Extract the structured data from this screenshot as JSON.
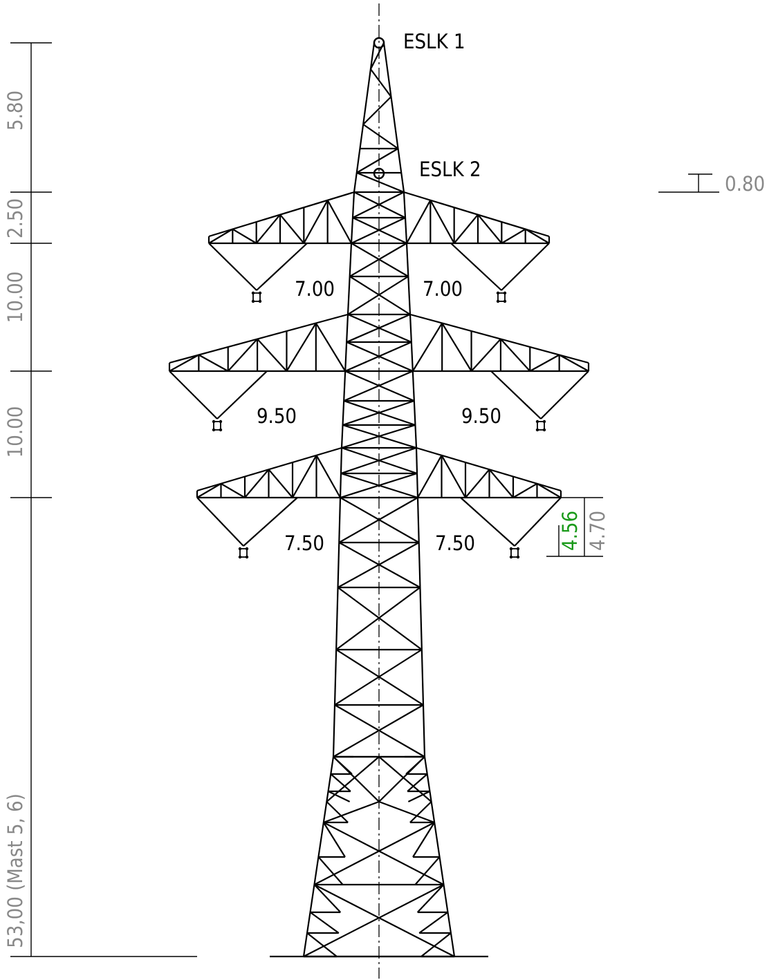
{
  "earth_wires": [
    {
      "label": "ESLK 1"
    },
    {
      "label": "ESLK 2"
    }
  ],
  "offset": "0.80",
  "height_dims": [
    "5.80",
    "2.50",
    "10.00",
    "10.00"
  ],
  "total_height": "53,00 (Mast 5, 6)",
  "arm_widths": [
    {
      "left": "7.00",
      "right": "7.00"
    },
    {
      "left": "9.50",
      "right": "9.50"
    },
    {
      "left": "7.50",
      "right": "7.50"
    }
  ],
  "clearance": {
    "value": "4.56",
    "reference": "4.70"
  }
}
